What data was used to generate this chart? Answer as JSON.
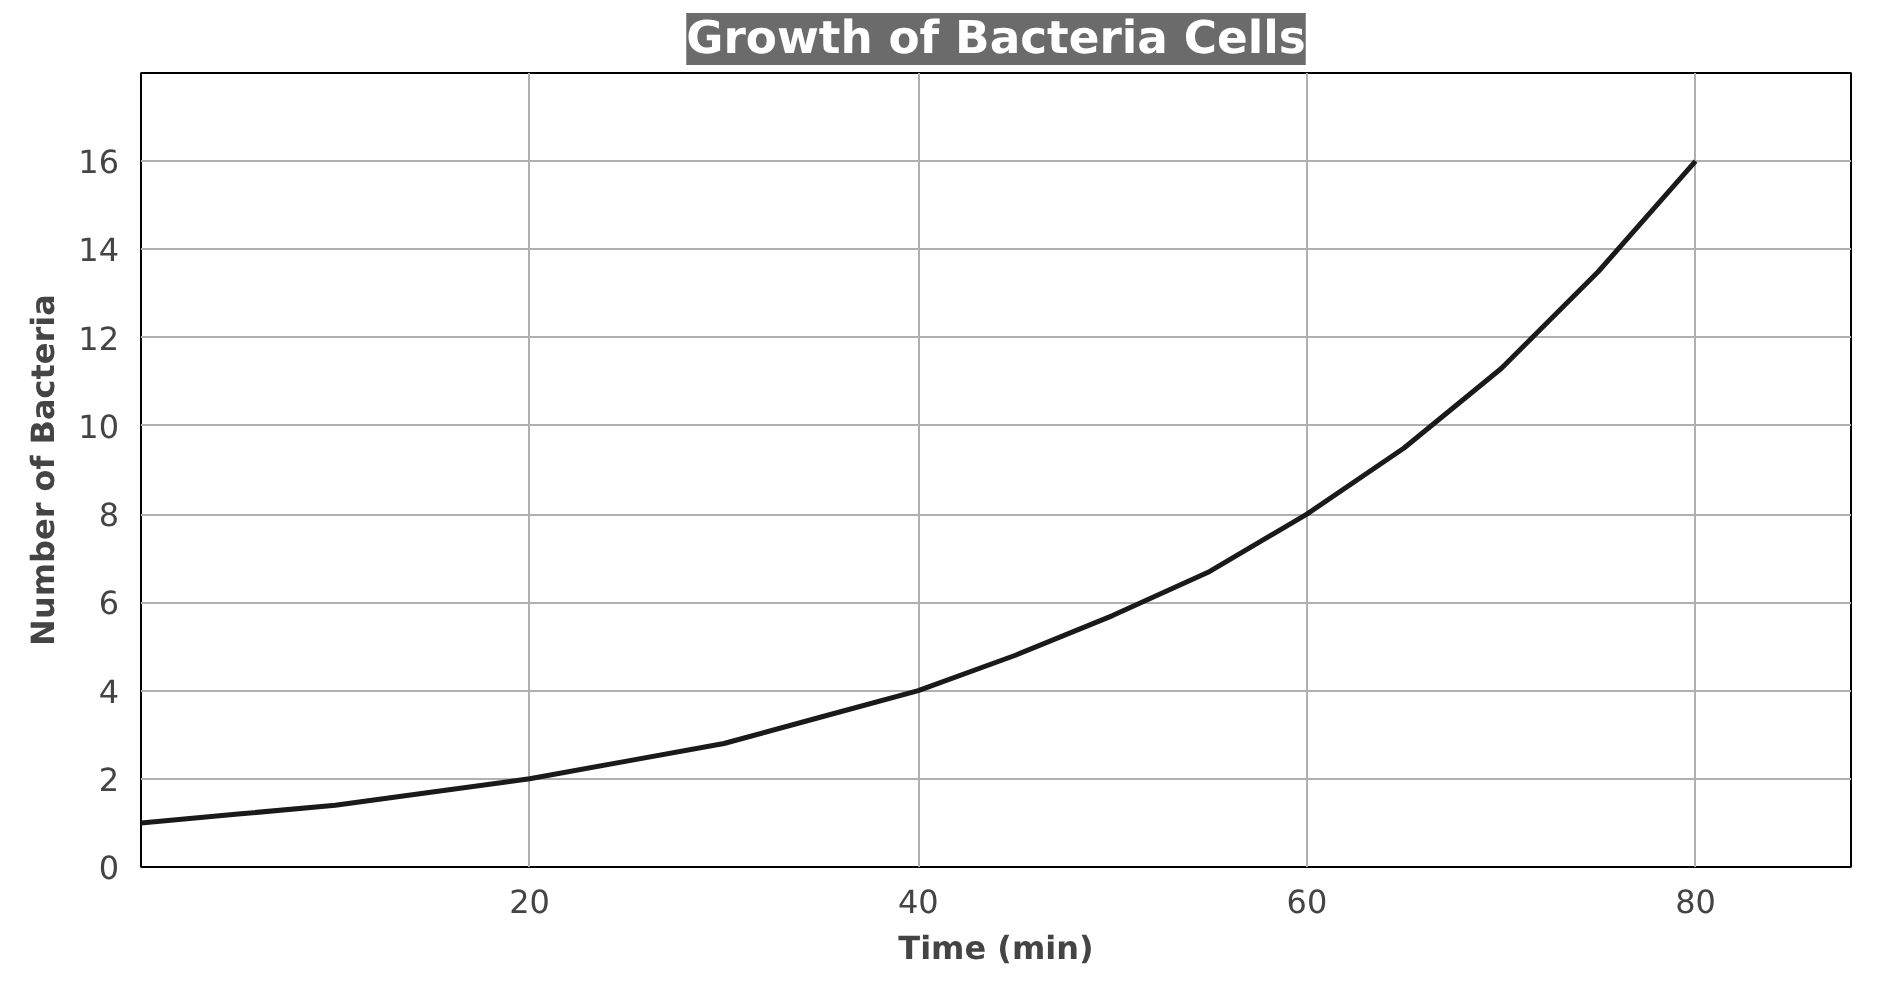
{
  "chart_data": {
    "type": "line",
    "title": "Growth of Bacteria Cells",
    "xlabel": "Time (min)",
    "ylabel": "Number of Bacteria",
    "x": [
      0,
      5,
      10,
      15,
      20,
      25,
      30,
      35,
      40,
      45,
      50,
      55,
      60,
      65,
      70,
      75,
      80
    ],
    "series": [
      {
        "color": "#1a1a1a",
        "values": [
          1,
          1.2,
          1.4,
          1.7,
          2,
          2.4,
          2.8,
          3.4,
          4,
          4.8,
          5.7,
          6.7,
          8,
          9.5,
          11.3,
          13.5,
          16
        ]
      }
    ],
    "xlim": [
      0,
      88
    ],
    "xticks": [
      20,
      40,
      60,
      80
    ],
    "ylim": [
      0,
      18
    ],
    "yticks": [
      0,
      2,
      4,
      6,
      8,
      10,
      12,
      14,
      16
    ],
    "grid": true,
    "marker": "none",
    "line_style": "solid"
  }
}
